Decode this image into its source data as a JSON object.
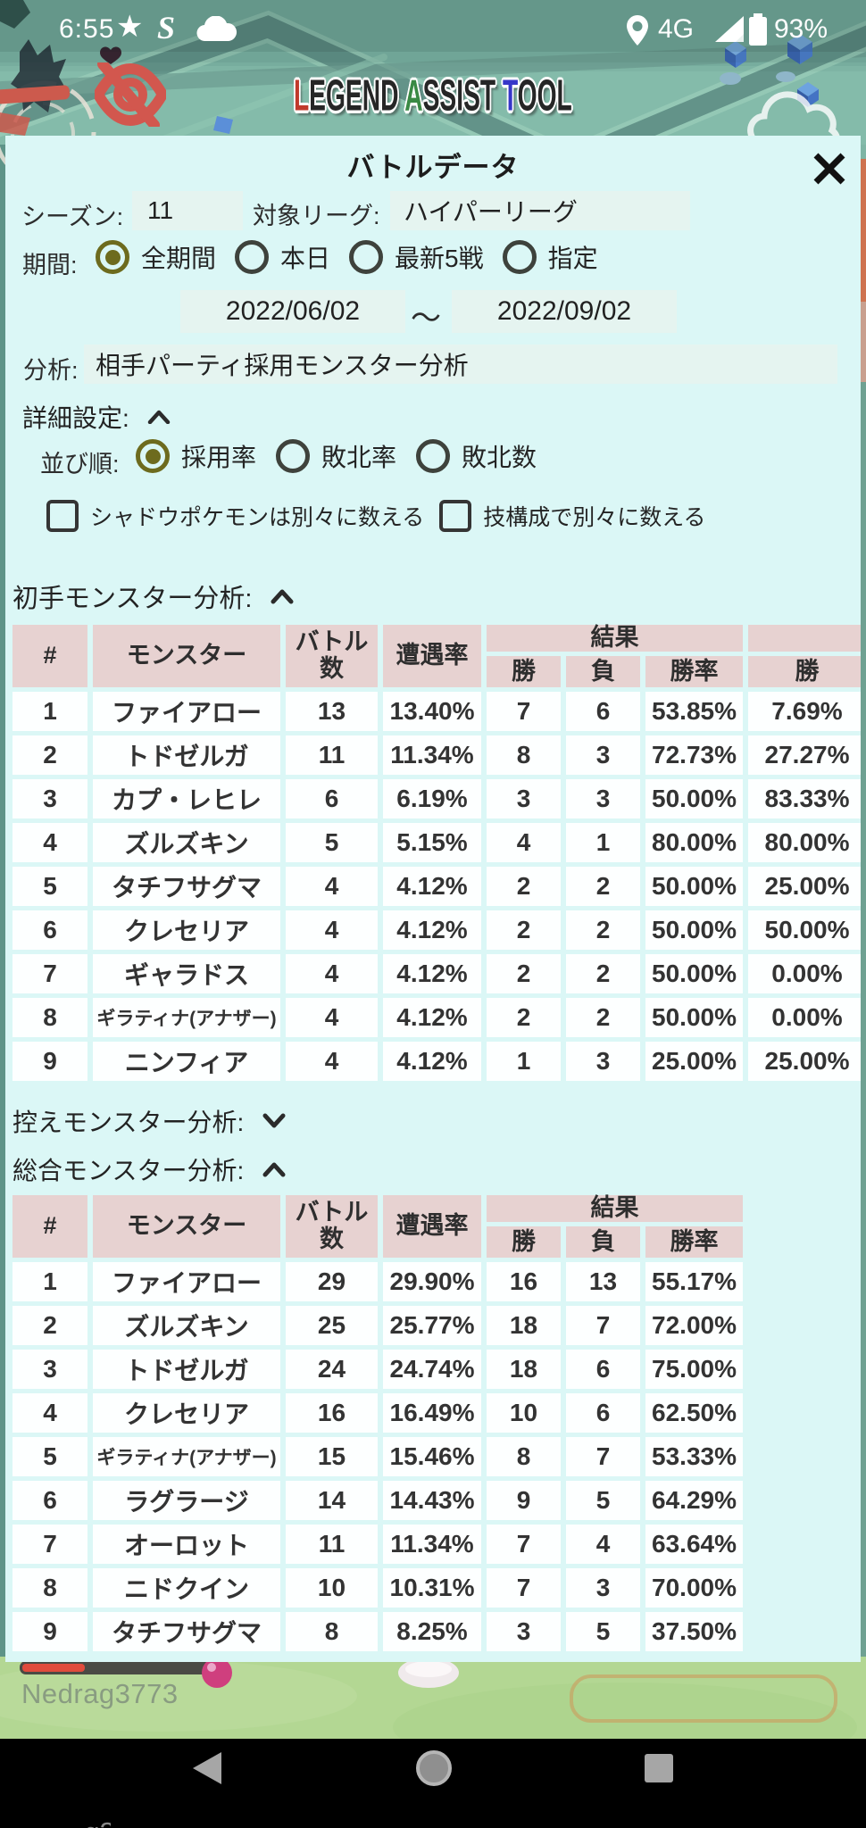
{
  "status_bar": {
    "time": "6:55",
    "star_icon": "★",
    "s_icon": "S",
    "cloud_icon": "cloud",
    "location_icon": "location-pin",
    "network": "4G",
    "signal_icon": "signal-triangle",
    "battery_icon": "battery",
    "battery_pct": "93%"
  },
  "header": {
    "hide_icon": "hidden-eye",
    "logo_letters": [
      {
        "ch": "L",
        "color": "#c0392b"
      },
      {
        "ch": "EGEND ",
        "color": "#262626"
      },
      {
        "ch": "A",
        "color": "#3a8a44"
      },
      {
        "ch": "SSIST ",
        "color": "#262626"
      },
      {
        "ch": "T",
        "color": "#3636c8"
      },
      {
        "ch": "OOL",
        "color": "#262626"
      }
    ]
  },
  "dialog": {
    "title": "バトルデータ",
    "season_label": "シーズン:",
    "season_value": "11",
    "league_label": "対象リーグ:",
    "league_value": "ハイパーリーグ",
    "period": {
      "label": "期間:",
      "options": [
        {
          "label": "全期間",
          "selected": true
        },
        {
          "label": "本日",
          "selected": false
        },
        {
          "label": "最新5戦",
          "selected": false
        },
        {
          "label": "指定",
          "selected": false
        }
      ]
    },
    "date_from": "2022/06/02",
    "date_separator": "～",
    "date_to": "2022/09/02",
    "analysis_label": "分析:",
    "analysis_value": "相手パーティ採用モンスター分析",
    "detail_label": "詳細設定:",
    "sort": {
      "label": "並び順:",
      "options": [
        {
          "label": "採用率",
          "selected": true
        },
        {
          "label": "敗北率",
          "selected": false
        },
        {
          "label": "敗北数",
          "selected": false
        }
      ]
    },
    "checkboxes": [
      {
        "label": "シャドウポケモンは別々に数える",
        "checked": false
      },
      {
        "label": "技構成で別々に数える",
        "checked": false
      }
    ],
    "section_lead": "初手モンスター分析:",
    "section_bench": "控えモンスター分析:",
    "section_total": "総合モンスター分析:"
  },
  "tables": {
    "lead": {
      "col_headers": [
        "#",
        "モンスター",
        "バトル\n数",
        "遭遇率"
      ],
      "group_header": "結果",
      "sub_headers": [
        "勝",
        "負",
        "勝率"
      ],
      "extra_header": "勝",
      "rows": [
        [
          "1",
          "ファイアロー",
          "13",
          "13.40%",
          "7",
          "6",
          "53.85%",
          "7.69%"
        ],
        [
          "2",
          "トドゼルガ",
          "11",
          "11.34%",
          "8",
          "3",
          "72.73%",
          "27.27%"
        ],
        [
          "3",
          "カプ・レヒレ",
          "6",
          "6.19%",
          "3",
          "3",
          "50.00%",
          "83.33%"
        ],
        [
          "4",
          "ズルズキン",
          "5",
          "5.15%",
          "4",
          "1",
          "80.00%",
          "80.00%"
        ],
        [
          "5",
          "タチフサグマ",
          "4",
          "4.12%",
          "2",
          "2",
          "50.00%",
          "25.00%"
        ],
        [
          "6",
          "クレセリア",
          "4",
          "4.12%",
          "2",
          "2",
          "50.00%",
          "50.00%"
        ],
        [
          "7",
          "ギャラドス",
          "4",
          "4.12%",
          "2",
          "2",
          "50.00%",
          "0.00%"
        ],
        [
          "8",
          "ギラティナ(アナザー)",
          "4",
          "4.12%",
          "2",
          "2",
          "50.00%",
          "0.00%"
        ],
        [
          "9",
          "ニンフィア",
          "4",
          "4.12%",
          "1",
          "3",
          "25.00%",
          "25.00%"
        ]
      ]
    },
    "total": {
      "col_headers": [
        "#",
        "モンスター",
        "バトル\n数",
        "遭遇率"
      ],
      "group_header": "結果",
      "sub_headers": [
        "勝",
        "負",
        "勝率"
      ],
      "rows": [
        [
          "1",
          "ファイアロー",
          "29",
          "29.90%",
          "16",
          "13",
          "55.17%"
        ],
        [
          "2",
          "ズルズキン",
          "25",
          "25.77%",
          "18",
          "7",
          "72.00%"
        ],
        [
          "3",
          "トドゼルガ",
          "24",
          "24.74%",
          "18",
          "6",
          "75.00%"
        ],
        [
          "4",
          "クレセリア",
          "16",
          "16.49%",
          "10",
          "6",
          "62.50%"
        ],
        [
          "5",
          "ギラティナ(アナザー)",
          "15",
          "15.46%",
          "8",
          "7",
          "53.33%"
        ],
        [
          "6",
          "ラグラージ",
          "14",
          "14.43%",
          "9",
          "5",
          "64.29%"
        ],
        [
          "7",
          "オーロット",
          "11",
          "11.34%",
          "7",
          "4",
          "63.64%"
        ],
        [
          "8",
          "ニドクイン",
          "10",
          "10.31%",
          "7",
          "3",
          "70.00%"
        ],
        [
          "9",
          "タチフサグマ",
          "8",
          "8.25%",
          "3",
          "5",
          "37.50%"
        ]
      ]
    }
  },
  "watermark": "Nedrag3773",
  "navbar": {
    "back_icon": "back-triangle",
    "home_icon": "home-circle",
    "recents_icon": "recents-square"
  },
  "colors": {
    "panel_bg": "#dbf7f6",
    "field_bg": "#e5f4f0",
    "table_header_bg": "#e7d2d1",
    "table_cell_bg": "#fdffff",
    "radio_selected": "#6d6b1e",
    "accent_red": "#d2574e",
    "map_teal": "#7fb5a5",
    "grass_green": "#b3d793"
  }
}
